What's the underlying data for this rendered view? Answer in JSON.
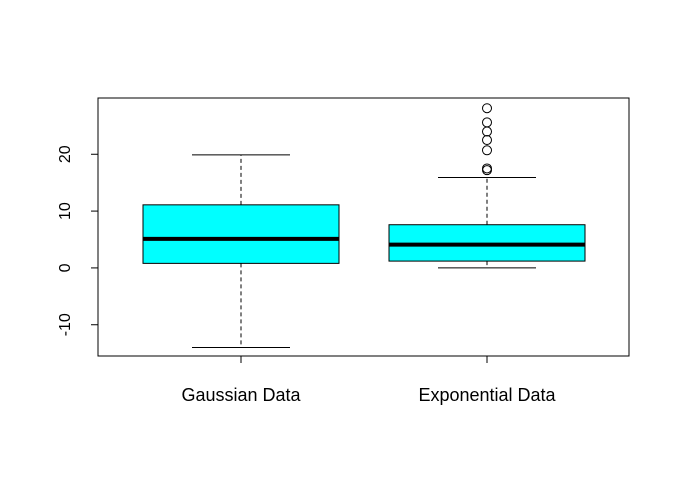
{
  "chart_data": {
    "type": "boxplot",
    "title": "",
    "xlabel": "",
    "ylabel": "",
    "ylim": [
      -15.5,
      29.9
    ],
    "y_ticks": [
      -10,
      0,
      10,
      20
    ],
    "y_tick_labels": [
      "-10",
      "0",
      "10",
      "20"
    ],
    "grid": false,
    "legend": "none",
    "box_fill": "#00ffff",
    "categories": [
      "Gaussian Data",
      "Exponential Data"
    ],
    "boxes": [
      {
        "name": "Gaussian Data",
        "whisker_low": -14.0,
        "q1": 0.8,
        "median": 5.1,
        "q3": 11.1,
        "whisker_high": 19.9,
        "outliers": []
      },
      {
        "name": "Exponential Data",
        "whisker_low": 0.0,
        "q1": 1.2,
        "median": 4.1,
        "q3": 7.6,
        "whisker_high": 15.9,
        "outliers": [
          17.2,
          17.5,
          20.7,
          22.5,
          24.0,
          25.6,
          28.1
        ]
      }
    ]
  }
}
